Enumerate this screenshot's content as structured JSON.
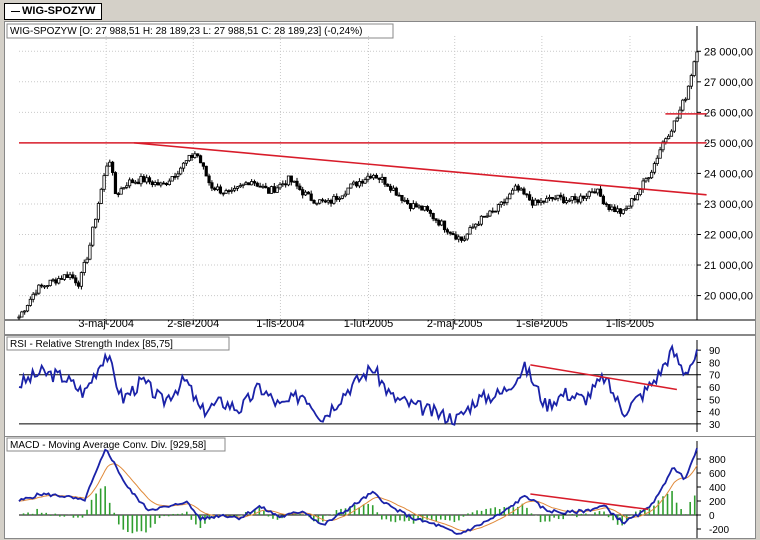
{
  "window": {
    "tab_label": "WIG-SPOZYW"
  },
  "colors": {
    "price": "#000000",
    "trendline": "#d81c2a",
    "rsi": "#1a22a8",
    "macd": "#1a22a8",
    "signal": "#e08a3a",
    "hist": "#2f9e2f",
    "grid": "#c9c9c9",
    "axis": "#000000"
  },
  "chart_data": [
    {
      "type": "candlestick",
      "title": "WIG-SPOZYW [O: 27 988,51   H: 28 189,23   L: 27 988,51   C: 28 189,23] (-0,24%)",
      "ylim": [
        19200,
        28500
      ],
      "y_ticks": [
        20000,
        21000,
        22000,
        23000,
        24000,
        25000,
        26000,
        27000,
        28000
      ],
      "y_tick_labels": [
        "20 000,00",
        "21 000,00",
        "22 000,00",
        "23 000,00",
        "24 000,00",
        "25 000,00",
        "26 000,00",
        "27 000,00",
        "28 000,00"
      ],
      "x_tick_labels": [
        "3-maj-2004",
        "2-sie-2004",
        "1-lis-2004",
        "1-lut-2005",
        "2-maj-2005",
        "1-sie-2005",
        "1-lis-2005"
      ],
      "x_tick_dates": [
        "2004-05-03",
        "2004-08-02",
        "2004-11-01",
        "2005-02-01",
        "2005-05-02",
        "2005-08-01",
        "2005-11-01"
      ],
      "date_range": [
        "2004-02-02",
        "2006-01-10"
      ],
      "close_keypoints": [
        [
          "2004-02-02",
          19300
        ],
        [
          "2004-02-20",
          20200
        ],
        [
          "2004-03-10",
          20500
        ],
        [
          "2004-03-25",
          20700
        ],
        [
          "2004-04-05",
          20400
        ],
        [
          "2004-04-15",
          21500
        ],
        [
          "2004-04-26",
          23200
        ],
        [
          "2004-05-06",
          24600
        ],
        [
          "2004-05-13",
          23300
        ],
        [
          "2004-05-25",
          23700
        ],
        [
          "2004-06-10",
          23800
        ],
        [
          "2004-07-01",
          23600
        ],
        [
          "2004-07-20",
          24200
        ],
        [
          "2004-08-05",
          24700
        ],
        [
          "2004-08-20",
          23600
        ],
        [
          "2004-09-10",
          23300
        ],
        [
          "2004-10-01",
          23800
        ],
        [
          "2004-10-20",
          23400
        ],
        [
          "2004-11-10",
          23800
        ],
        [
          "2004-12-01",
          23200
        ],
        [
          "2004-12-20",
          23000
        ],
        [
          "2005-01-10",
          23500
        ],
        [
          "2005-02-05",
          24000
        ],
        [
          "2005-02-20",
          23700
        ],
        [
          "2005-03-15",
          23000
        ],
        [
          "2005-04-01",
          22800
        ],
        [
          "2005-04-20",
          22300
        ],
        [
          "2005-05-10",
          21800
        ],
        [
          "2005-05-25",
          22400
        ],
        [
          "2005-06-15",
          22800
        ],
        [
          "2005-07-05",
          23500
        ],
        [
          "2005-07-25",
          23000
        ],
        [
          "2005-08-15",
          23200
        ],
        [
          "2005-09-05",
          23100
        ],
        [
          "2005-09-25",
          23500
        ],
        [
          "2005-10-10",
          22900
        ],
        [
          "2005-10-25",
          22700
        ],
        [
          "2005-11-10",
          23400
        ],
        [
          "2005-11-25",
          24200
        ],
        [
          "2005-12-05",
          25000
        ],
        [
          "2005-12-20",
          25800
        ],
        [
          "2005-12-30",
          26600
        ],
        [
          "2006-01-05",
          27400
        ],
        [
          "2006-01-10",
          28100
        ]
      ],
      "lines": [
        {
          "name": "",
          "points": [
            [
              "2004-02-02",
              25000
            ],
            [
              "2006-01-20",
              25000
            ]
          ]
        },
        {
          "name": "",
          "points": [
            [
              "2004-06-01",
              25000
            ],
            [
              "2006-01-20",
              23300
            ]
          ]
        },
        {
          "name": "",
          "points": [
            [
              "2005-12-08",
              25950
            ],
            [
              "2006-01-20",
              25950
            ]
          ]
        }
      ],
      "grid": true,
      "legend": "top-left"
    },
    {
      "type": "line",
      "title": "RSI - Relative Strength Index [85,75]",
      "ylim": [
        25,
        95
      ],
      "y_ticks": [
        30,
        40,
        50,
        60,
        70,
        80,
        90
      ],
      "reference_lines": [
        30,
        70
      ],
      "keypoints": [
        [
          "2004-02-02",
          62
        ],
        [
          "2004-02-25",
          72
        ],
        [
          "2004-03-20",
          68
        ],
        [
          "2004-04-10",
          55
        ],
        [
          "2004-05-03",
          88
        ],
        [
          "2004-05-20",
          50
        ],
        [
          "2004-06-10",
          65
        ],
        [
          "2004-07-01",
          48
        ],
        [
          "2004-07-25",
          66
        ],
        [
          "2004-08-10",
          40
        ],
        [
          "2004-09-01",
          48
        ],
        [
          "2004-09-20",
          42
        ],
        [
          "2004-10-10",
          60
        ],
        [
          "2004-11-01",
          44
        ],
        [
          "2004-11-25",
          55
        ],
        [
          "2004-12-15",
          35
        ],
        [
          "2005-01-10",
          58
        ],
        [
          "2005-02-05",
          76
        ],
        [
          "2005-02-25",
          52
        ],
        [
          "2005-03-20",
          45
        ],
        [
          "2005-04-15",
          38
        ],
        [
          "2005-05-05",
          34
        ],
        [
          "2005-05-25",
          50
        ],
        [
          "2005-06-20",
          55
        ],
        [
          "2005-07-15",
          76
        ],
        [
          "2005-08-05",
          45
        ],
        [
          "2005-08-25",
          55
        ],
        [
          "2005-09-15",
          50
        ],
        [
          "2005-10-05",
          68
        ],
        [
          "2005-10-25",
          40
        ],
        [
          "2005-11-15",
          55
        ],
        [
          "2005-12-01",
          70
        ],
        [
          "2005-12-15",
          90
        ],
        [
          "2005-12-28",
          72
        ],
        [
          "2006-01-10",
          86
        ]
      ],
      "trendline": [
        [
          "2005-07-20",
          78
        ],
        [
          "2005-12-20",
          58
        ]
      ],
      "grid": false
    },
    {
      "type": "line",
      "title": "MACD - Moving Average Conv. Div. [929,58]",
      "ylim": [
        -300,
        1000
      ],
      "y_ticks": [
        -200,
        0,
        200,
        400,
        600,
        800
      ],
      "macd_keypoints": [
        [
          "2004-02-02",
          200
        ],
        [
          "2004-02-25",
          300
        ],
        [
          "2004-03-20",
          270
        ],
        [
          "2004-04-10",
          200
        ],
        [
          "2004-05-03",
          950
        ],
        [
          "2004-05-25",
          400
        ],
        [
          "2004-06-15",
          80
        ],
        [
          "2004-07-10",
          120
        ],
        [
          "2004-07-25",
          200
        ],
        [
          "2004-08-10",
          -60
        ],
        [
          "2004-09-01",
          0
        ],
        [
          "2004-09-20",
          -40
        ],
        [
          "2004-10-10",
          120
        ],
        [
          "2004-11-01",
          -30
        ],
        [
          "2004-11-25",
          60
        ],
        [
          "2004-12-15",
          -150
        ],
        [
          "2005-01-10",
          80
        ],
        [
          "2005-02-05",
          320
        ],
        [
          "2005-02-25",
          110
        ],
        [
          "2005-03-20",
          -50
        ],
        [
          "2005-04-15",
          -150
        ],
        [
          "2005-05-05",
          -280
        ],
        [
          "2005-05-25",
          -160
        ],
        [
          "2005-06-20",
          20
        ],
        [
          "2005-07-15",
          280
        ],
        [
          "2005-08-05",
          70
        ],
        [
          "2005-08-25",
          30
        ],
        [
          "2005-09-15",
          60
        ],
        [
          "2005-10-05",
          130
        ],
        [
          "2005-10-25",
          -110
        ],
        [
          "2005-11-15",
          40
        ],
        [
          "2005-12-01",
          280
        ],
        [
          "2005-12-15",
          680
        ],
        [
          "2005-12-28",
          520
        ],
        [
          "2006-01-10",
          930
        ]
      ],
      "trendline": [
        [
          "2005-07-20",
          300
        ],
        [
          "2005-11-20",
          80
        ]
      ],
      "grid": false
    }
  ]
}
